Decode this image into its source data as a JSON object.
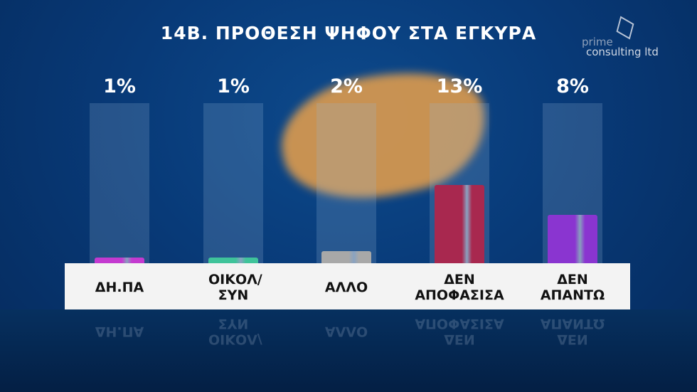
{
  "title": "14Β. ΠΡΟΘΕΣΗ ΨΗΦΟΥ ΣΤΑ ΕΓΚΥΡΑ",
  "logo": {
    "line1": "prime",
    "line2": "consulting ltd"
  },
  "chart_data": {
    "type": "bar",
    "title": "14Β. ΠΡΟΘΕΣΗ ΨΗΦΟΥ ΣΤΑ ΕΓΚΥΡΑ",
    "categories": [
      "ΔΗ.ΠΑ",
      "ΟΙΚΟΛ/ ΣΥΝ",
      "ΑΛΛΟ",
      "ΔΕΝ ΑΠΟΦΑΣΙΣΑ",
      "ΔΕΝ ΑΠΑΝΤΩ"
    ],
    "values": [
      1,
      1,
      2,
      13,
      8
    ],
    "value_labels": [
      "1%",
      "1%",
      "2%",
      "13%",
      "8%"
    ],
    "colors": [
      "#c43ad0",
      "#3fc39a",
      "#a8a8a8",
      "#a8284f",
      "#8a35d0"
    ],
    "ylim": [
      0,
      26.5
    ],
    "grid": false
  }
}
